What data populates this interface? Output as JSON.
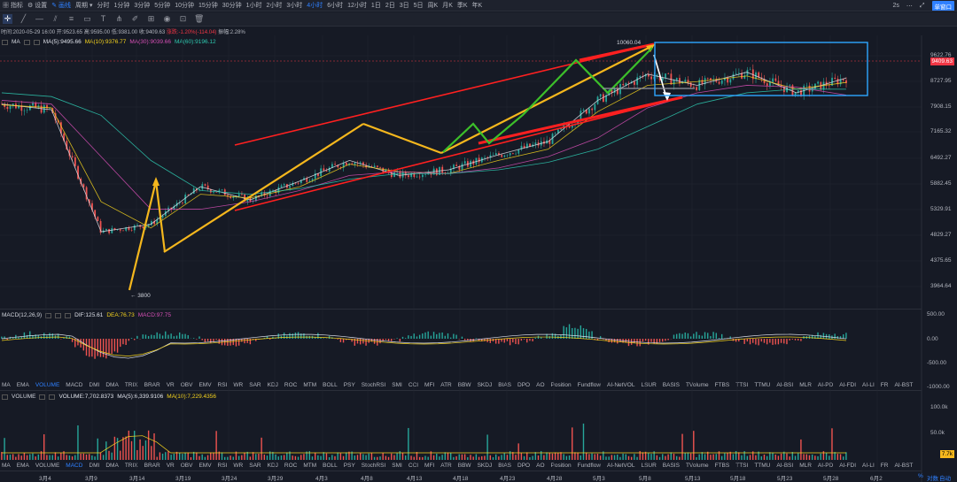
{
  "topbar": {
    "indicators_label": "指标",
    "settings_label": "设置",
    "draw_label": "画线",
    "period_label": "周期",
    "intervals": [
      "分时",
      "1分钟",
      "3分钟",
      "5分钟",
      "10分钟",
      "15分钟",
      "30分钟",
      "1小时",
      "2小时",
      "3小时",
      "4小时",
      "6小时",
      "12小时",
      "1日",
      "2日",
      "3日",
      "5日",
      "周K",
      "月K",
      "季K",
      "年K"
    ],
    "active_interval": "4小时",
    "right_zoom": "2s",
    "single_window_label": "单窗口"
  },
  "info": {
    "time": "时间:2020-05-29 16:00",
    "open": "开:9523.65",
    "high": "高:9595.00",
    "low": "低:9381.00",
    "close": "收:9409.63",
    "change": "涨跌:-1.20%(-114.04)",
    "amplitude": "振幅:2.28%"
  },
  "ma_legend": {
    "name": "MA",
    "ma5": "MA(5):9495.66",
    "ma10": "MA(10):9376.77",
    "ma30": "MA(30):9039.66",
    "ma60": "MA(60):9196.12"
  },
  "macd_legend": {
    "name": "MACD(12,26,9)",
    "dif": "DIF:125.61",
    "dea": "DEA:76.73",
    "macd": "MACD:97.75"
  },
  "volume_legend": {
    "name": "VOLUME",
    "volume": "VOLUME:7,702.8373",
    "ma5": "MA(5):6,339.9106",
    "ma10": "MA(10):7,229.4356"
  },
  "indicator_tabs": [
    "MA",
    "EMA",
    "VOLUME",
    "MACD",
    "DMI",
    "DMA",
    "TRIX",
    "BRAR",
    "VR",
    "OBV",
    "EMV",
    "RSI",
    "WR",
    "SAR",
    "KDJ",
    "ROC",
    "MTM",
    "BOLL",
    "PSY",
    "StochRSI",
    "SMI",
    "CCI",
    "MFI",
    "ATR",
    "BBW",
    "SKDJ",
    "BIAS",
    "DPO",
    "AO",
    "Position",
    "Fundflow",
    "AI-NetVOL",
    "LSUR",
    "BASIS",
    "TVolume",
    "FTBS",
    "TTSI",
    "TTMU",
    "AI-BSI",
    "MLR",
    "AI-PD",
    "AI-FDI",
    "AI-LI",
    "FR",
    "AI-BST"
  ],
  "active_tab_main": "VOLUME",
  "active_tab_vol": "MACD",
  "price_axis": [
    "9622.76",
    "8727.95",
    "7908.15",
    "7165.32",
    "6492.27",
    "5882.45",
    "5329.91",
    "4829.27",
    "4375.65",
    "3964.64"
  ],
  "current_price": "9409.63",
  "macd_axis": [
    "500.00",
    "0.00",
    "-500.00",
    "-1000.00"
  ],
  "volume_axis": [
    "100.0k",
    "50.0k"
  ],
  "current_volume": "7.7k",
  "date_axis": [
    "3月4",
    "3月9",
    "3月14",
    "3月19",
    "3月24",
    "3月29",
    "4月3",
    "4月8",
    "4月13",
    "4月18",
    "4月23",
    "4月28",
    "5月3",
    "5月8",
    "5月13",
    "5月18",
    "5月23",
    "5月28",
    "6月2"
  ],
  "annotations": {
    "high": "10060.04",
    "low": "← 3800"
  },
  "bottom_right": {
    "pct": "%",
    "log": "对数",
    "auto": "自动"
  },
  "colors": {
    "up": "#26a69a",
    "down": "#ef5350",
    "channel": "#ff2020",
    "arrow_yellow": "#f5b71d",
    "arrow_green": "#3cbf2a",
    "box": "#2ea7ff"
  },
  "chart_data": {
    "type": "line",
    "x": [
      "3月4",
      "3月9",
      "3月14",
      "3月19",
      "3月24",
      "3月29",
      "4月3",
      "4月8",
      "4月13",
      "4月18",
      "4月23",
      "4月28",
      "5月3",
      "5月8",
      "5月13",
      "5月18",
      "5月23",
      "5月28"
    ],
    "series": [
      {
        "name": "MA(5)",
        "values": [
          8800,
          8650,
          5400,
          5600,
          6600,
          6250,
          6750,
          7300,
          6900,
          7050,
          7450,
          7800,
          8900,
          9600,
          9300,
          9650,
          9100,
          9496
        ]
      },
      {
        "name": "MA(10)",
        "values": [
          8780,
          8700,
          6200,
          5500,
          6400,
          6300,
          6600,
          7200,
          7000,
          6950,
          7300,
          7600,
          8600,
          9300,
          9400,
          9550,
          9200,
          9377
        ]
      },
      {
        "name": "MA(30)",
        "values": [
          8900,
          8800,
          7400,
          6000,
          6000,
          6200,
          6500,
          6900,
          7000,
          6950,
          7100,
          7400,
          7900,
          8700,
          9100,
          9300,
          9250,
          9040
        ]
      },
      {
        "name": "MA(60)",
        "values": [
          9100,
          9000,
          8500,
          7300,
          6500,
          6400,
          6550,
          6800,
          6950,
          6950,
          7050,
          7250,
          7600,
          8200,
          8800,
          9100,
          9200,
          9196
        ]
      }
    ],
    "ylim": [
      3800,
      10300
    ],
    "grid": true
  }
}
